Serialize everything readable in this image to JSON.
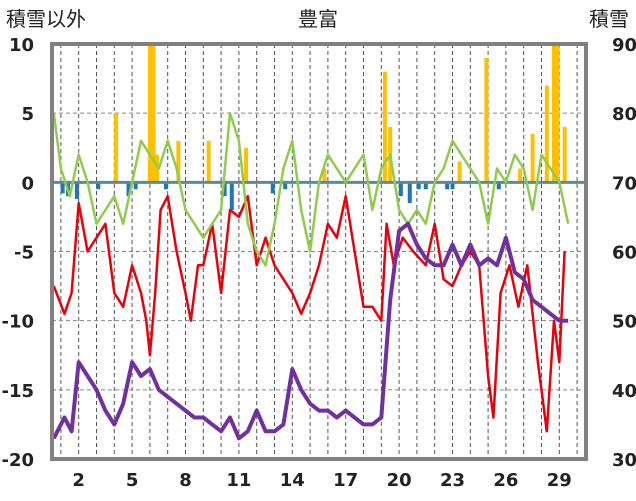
{
  "chart_data": {
    "type": "line",
    "title": "豊富",
    "ylabel_left": "積雪以外",
    "ylabel_right": "積雪",
    "left_axis": {
      "min": -20,
      "max": 10,
      "step": 5,
      "ticks": [
        "10",
        "5",
        "0",
        "-5",
        "-10",
        "-15",
        "-20"
      ]
    },
    "right_axis": {
      "min": 30,
      "max": 90,
      "step": 10,
      "ticks": [
        "90",
        "80",
        "70",
        "60",
        "50",
        "40",
        "30"
      ]
    },
    "x_axis": {
      "min": 0.5,
      "max": 30.5,
      "ticks": [
        "2",
        "5",
        "8",
        "11",
        "14",
        "17",
        "20",
        "23",
        "26",
        "29"
      ],
      "grid": "daily-dashed"
    },
    "colors": {
      "temperature": "#e8000b",
      "temp_secondary": "#8fcc4d",
      "snow_depth": "#7030a0",
      "precip_pos": "#ffc000",
      "precip_neg": "#1f77b4",
      "zero_line": "#5b8a9a",
      "frame": "#808080"
    },
    "series": [
      {
        "key": "temperature",
        "axis": "left",
        "points": [
          [
            0.6,
            -7.5
          ],
          [
            1.2,
            -9.5
          ],
          [
            1.6,
            -8
          ],
          [
            2,
            -1.5
          ],
          [
            2.5,
            -5
          ],
          [
            3,
            -4
          ],
          [
            3.5,
            -3
          ],
          [
            4,
            -8
          ],
          [
            4.5,
            -9
          ],
          [
            5,
            -6
          ],
          [
            5.5,
            -8
          ],
          [
            5.8,
            -10
          ],
          [
            6,
            -12.5
          ],
          [
            6.3,
            -8
          ],
          [
            6.6,
            -2
          ],
          [
            7,
            -1
          ],
          [
            7.5,
            -5
          ],
          [
            8,
            -8
          ],
          [
            8.3,
            -10
          ],
          [
            8.7,
            -6
          ],
          [
            9,
            -6
          ],
          [
            9.5,
            -3
          ],
          [
            10,
            -8
          ],
          [
            10.5,
            -2
          ],
          [
            11,
            -2.5
          ],
          [
            11.5,
            -1
          ],
          [
            12,
            -6
          ],
          [
            12.5,
            -4
          ],
          [
            13,
            -6
          ],
          [
            13.5,
            -7
          ],
          [
            14,
            -8
          ],
          [
            14.5,
            -9.5
          ],
          [
            15,
            -8
          ],
          [
            15.5,
            -6
          ],
          [
            16,
            -3
          ],
          [
            16.5,
            -4
          ],
          [
            17,
            -1
          ],
          [
            17.5,
            -5
          ],
          [
            18,
            -9
          ],
          [
            18.5,
            -9
          ],
          [
            19,
            -10
          ],
          [
            19.3,
            -3
          ],
          [
            19.7,
            -6
          ],
          [
            20.2,
            -4
          ],
          [
            20.8,
            -5
          ],
          [
            21.5,
            -6
          ],
          [
            22,
            -3
          ],
          [
            22.5,
            -7
          ],
          [
            23,
            -7.5
          ],
          [
            23.5,
            -6
          ],
          [
            24,
            -5
          ],
          [
            24.5,
            -6
          ],
          [
            25,
            -14
          ],
          [
            25.3,
            -17
          ],
          [
            25.7,
            -8
          ],
          [
            26.2,
            -6
          ],
          [
            26.7,
            -9
          ],
          [
            27.2,
            -6
          ],
          [
            27.8,
            -13
          ],
          [
            28.3,
            -18
          ],
          [
            28.7,
            -10
          ],
          [
            29,
            -13
          ],
          [
            29.3,
            -5
          ]
        ]
      },
      {
        "key": "temp_secondary",
        "axis": "left",
        "points": [
          [
            0.6,
            5
          ],
          [
            1,
            1
          ],
          [
            1.5,
            -1
          ],
          [
            2,
            2
          ],
          [
            2.5,
            0
          ],
          [
            3,
            -3
          ],
          [
            3.5,
            -2
          ],
          [
            4,
            -1
          ],
          [
            4.5,
            -3
          ],
          [
            5,
            0
          ],
          [
            5.5,
            3
          ],
          [
            6,
            2
          ],
          [
            6.5,
            1
          ],
          [
            7,
            3
          ],
          [
            7.5,
            1
          ],
          [
            8,
            -2
          ],
          [
            8.5,
            -3
          ],
          [
            9,
            -4
          ],
          [
            9.5,
            -3
          ],
          [
            10,
            -2
          ],
          [
            10.5,
            5
          ],
          [
            11,
            3
          ],
          [
            11.5,
            -3
          ],
          [
            12,
            -5
          ],
          [
            12.5,
            -6
          ],
          [
            13,
            -3
          ],
          [
            13.5,
            1
          ],
          [
            14,
            3
          ],
          [
            14.5,
            -2
          ],
          [
            15,
            -5
          ],
          [
            15.5,
            0
          ],
          [
            16,
            2
          ],
          [
            16.5,
            1
          ],
          [
            17,
            0
          ],
          [
            17.5,
            1
          ],
          [
            18,
            2
          ],
          [
            18.5,
            -2
          ],
          [
            19,
            1
          ],
          [
            19.5,
            2
          ],
          [
            20,
            -2
          ],
          [
            20.5,
            -3
          ],
          [
            21,
            -2
          ],
          [
            21.5,
            -3
          ],
          [
            22,
            0
          ],
          [
            22.5,
            1
          ],
          [
            23,
            3
          ],
          [
            23.5,
            2
          ],
          [
            24,
            1
          ],
          [
            24.5,
            0
          ],
          [
            25,
            -3
          ],
          [
            25.5,
            1
          ],
          [
            26,
            0
          ],
          [
            26.5,
            2
          ],
          [
            27,
            1
          ],
          [
            27.5,
            -2
          ],
          [
            28,
            2
          ],
          [
            28.5,
            1
          ],
          [
            29,
            0
          ],
          [
            29.5,
            -3
          ]
        ]
      },
      {
        "key": "snow_depth",
        "axis": "right",
        "points": [
          [
            0.6,
            33
          ],
          [
            1.2,
            36
          ],
          [
            1.6,
            34
          ],
          [
            2,
            44
          ],
          [
            2.5,
            42
          ],
          [
            3,
            40
          ],
          [
            3.5,
            37
          ],
          [
            4,
            35
          ],
          [
            4.5,
            38
          ],
          [
            5,
            44
          ],
          [
            5.5,
            42
          ],
          [
            6,
            43
          ],
          [
            6.5,
            40
          ],
          [
            7,
            39
          ],
          [
            7.5,
            38
          ],
          [
            8,
            37
          ],
          [
            8.5,
            36
          ],
          [
            9,
            36
          ],
          [
            9.5,
            35
          ],
          [
            10,
            34
          ],
          [
            10.5,
            36
          ],
          [
            11,
            33
          ],
          [
            11.5,
            34
          ],
          [
            12,
            37
          ],
          [
            12.5,
            34
          ],
          [
            13,
            34
          ],
          [
            13.5,
            35
          ],
          [
            14,
            43
          ],
          [
            14.5,
            40
          ],
          [
            15,
            38
          ],
          [
            15.5,
            37
          ],
          [
            16,
            37
          ],
          [
            16.5,
            36
          ],
          [
            17,
            37
          ],
          [
            17.5,
            36
          ],
          [
            18,
            35
          ],
          [
            18.5,
            35
          ],
          [
            19,
            36
          ],
          [
            19.5,
            53
          ],
          [
            20,
            63
          ],
          [
            20.5,
            64
          ],
          [
            21,
            61
          ],
          [
            21.5,
            59
          ],
          [
            22,
            58
          ],
          [
            22.5,
            58
          ],
          [
            23,
            61
          ],
          [
            23.5,
            58
          ],
          [
            24,
            61
          ],
          [
            24.5,
            58
          ],
          [
            25,
            59
          ],
          [
            25.5,
            58
          ],
          [
            26,
            62
          ],
          [
            26.5,
            57
          ],
          [
            27,
            56
          ],
          [
            27.5,
            53
          ],
          [
            28,
            52
          ],
          [
            28.5,
            51
          ],
          [
            29,
            50
          ],
          [
            29.5,
            50
          ]
        ]
      }
    ],
    "precip_bars": [
      {
        "x": 1.1,
        "v": -0.8
      },
      {
        "x": 1.4,
        "v": -1.0
      },
      {
        "x": 1.9,
        "v": -1.2
      },
      {
        "x": 3.1,
        "v": -0.5
      },
      {
        "x": 4.1,
        "v": 5.0
      },
      {
        "x": 4.8,
        "v": -1.0
      },
      {
        "x": 5.2,
        "v": -0.5
      },
      {
        "x": 6.0,
        "v": 10
      },
      {
        "x": 6.2,
        "v": 10
      },
      {
        "x": 6.4,
        "v": 2.0
      },
      {
        "x": 6.9,
        "v": -0.5
      },
      {
        "x": 7.6,
        "v": 3.0
      },
      {
        "x": 9.3,
        "v": 3.0
      },
      {
        "x": 10.2,
        "v": -1.0
      },
      {
        "x": 10.6,
        "v": -2.0
      },
      {
        "x": 11.4,
        "v": 2.5
      },
      {
        "x": 12.9,
        "v": -0.8
      },
      {
        "x": 13.6,
        "v": -0.5
      },
      {
        "x": 15.8,
        "v": 1.0
      },
      {
        "x": 19.2,
        "v": 8.0
      },
      {
        "x": 19.5,
        "v": 4.0
      },
      {
        "x": 20.1,
        "v": -1.0
      },
      {
        "x": 20.6,
        "v": -1.5
      },
      {
        "x": 21.1,
        "v": -0.5
      },
      {
        "x": 21.5,
        "v": -0.5
      },
      {
        "x": 22.7,
        "v": -0.5
      },
      {
        "x": 23.0,
        "v": -0.5
      },
      {
        "x": 23.4,
        "v": 1.5
      },
      {
        "x": 24.9,
        "v": 9.0
      },
      {
        "x": 25.6,
        "v": -0.5
      },
      {
        "x": 26.8,
        "v": 1.0
      },
      {
        "x": 27.5,
        "v": 3.5
      },
      {
        "x": 28.3,
        "v": 7.0
      },
      {
        "x": 28.7,
        "v": 10
      },
      {
        "x": 28.9,
        "v": 10
      },
      {
        "x": 29.3,
        "v": 4.0
      }
    ]
  }
}
